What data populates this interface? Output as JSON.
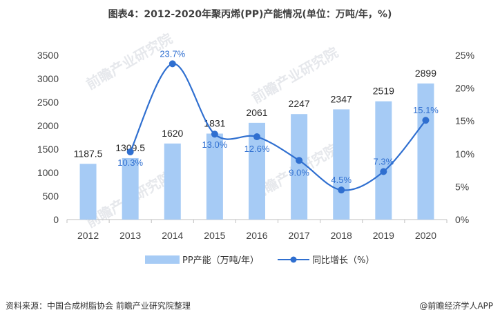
{
  "title": "图表4：2012-2020年聚丙烯(PP)产能情况(单位：万吨/年，%)",
  "footer": {
    "source": "资料来源：中国合成树脂协会 前瞻产业研究院整理",
    "brand": "@前瞻经济学人APP"
  },
  "watermark": "前瞻产业研究院",
  "chart_data": {
    "type": "bar+line",
    "categories": [
      "2012",
      "2013",
      "2014",
      "2015",
      "2016",
      "2017",
      "2018",
      "2019",
      "2020"
    ],
    "series": [
      {
        "name": "PP产能（万吨/年）",
        "type": "bar",
        "axis": "left",
        "values": [
          1187.5,
          1309.5,
          1620,
          1831,
          2061,
          2247,
          2347,
          2519,
          2899
        ],
        "labels": [
          "1187.5",
          "1309.5",
          "1620",
          "1831",
          "2061",
          "2247",
          "2347",
          "2519",
          "2899"
        ]
      },
      {
        "name": "同比增长（%）",
        "type": "line",
        "axis": "right",
        "values": [
          null,
          10.3,
          23.7,
          13.0,
          12.6,
          9.0,
          4.5,
          7.3,
          15.1
        ],
        "labels": [
          "",
          "10.3%",
          "23.7%",
          "13.0%",
          "12.6%",
          "9.0%",
          "4.5%",
          "7.3%",
          "15.1%"
        ]
      }
    ],
    "y_left": {
      "min": 0,
      "max": 3500,
      "ticks": [
        "0",
        "500",
        "1000",
        "1500",
        "2000",
        "2500",
        "3000",
        "3500"
      ]
    },
    "y_right": {
      "min": 0,
      "max": 25,
      "ticks": [
        "0%",
        "5%",
        "10%",
        "15%",
        "20%",
        "25%"
      ]
    },
    "grid": false,
    "legend_position": "bottom",
    "colors": {
      "bar": "#a6cbf5",
      "line": "#2f6fd0",
      "axis": "#bfbfbf"
    }
  }
}
